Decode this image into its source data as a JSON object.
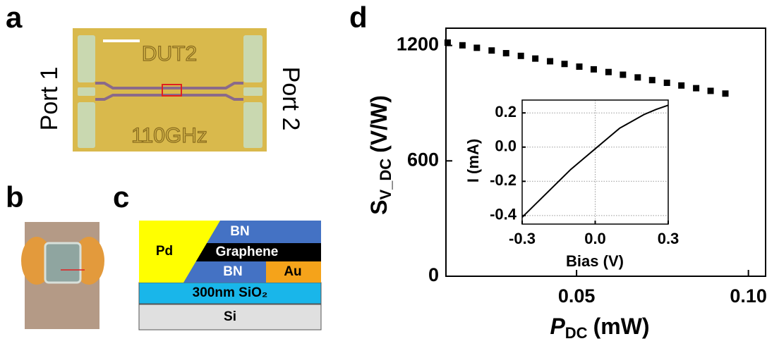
{
  "panels": {
    "a": {
      "label": "a",
      "port_left": "Port 1",
      "port_right": "Port 2",
      "chip_top": "DUT2",
      "chip_bottom": "110GHz"
    },
    "b": {
      "label": "b"
    },
    "c": {
      "label": "c",
      "layers": {
        "bn_top": "BN",
        "pd": "Pd",
        "graphene": "Graphene",
        "bn_bottom": "BN",
        "au": "Au",
        "oxide": "300nm SiO₂",
        "substrate": "Si"
      }
    },
    "d": {
      "label": "d"
    }
  },
  "chart_data": [
    {
      "type": "scatter",
      "xlabel": {
        "main": "P",
        "sub": "DC",
        "unit": "(mW)"
      },
      "ylabel": {
        "main": "S",
        "sub": "V_DC",
        "unit": "(V/W)"
      },
      "x": [
        0.0125,
        0.0168,
        0.021,
        0.0253,
        0.0295,
        0.0338,
        0.038,
        0.0423,
        0.0465,
        0.0508,
        0.055,
        0.0593,
        0.0635,
        0.0678,
        0.072,
        0.0763,
        0.0805,
        0.0848,
        0.089,
        0.0933
      ],
      "values": [
        1215,
        1201,
        1188,
        1174,
        1160,
        1146,
        1132,
        1118,
        1104,
        1090,
        1076,
        1062,
        1048,
        1034,
        1020,
        1006,
        992,
        978,
        964,
        950
      ],
      "color": "#000000",
      "xlim": [
        0.012,
        0.105
      ],
      "xticks": [
        0.05,
        {
          "value": 0.1,
          "label": "0.10"
        }
      ],
      "ylim": [
        0,
        1290
      ],
      "yticks": [
        0,
        600,
        1200
      ]
    },
    {
      "type": "line",
      "xlabel": "Bias (V)",
      "ylabel": "I (mA)",
      "x": [
        -0.3,
        -0.25,
        -0.2,
        -0.15,
        -0.1,
        -0.05,
        0,
        0.05,
        0.1,
        0.15,
        0.2,
        0.25,
        0.3
      ],
      "values": [
        -0.41,
        -0.34,
        -0.27,
        -0.2,
        -0.13,
        -0.07,
        -0.01,
        0.05,
        0.11,
        0.15,
        0.19,
        0.22,
        0.245
      ],
      "color": "#000000",
      "xlim": [
        -0.3,
        0.3
      ],
      "xticks": [
        -0.3,
        {
          "value": 0,
          "label": "0.0"
        },
        0.3
      ],
      "ylim": [
        -0.45,
        0.275
      ],
      "yticks": [
        0.2,
        {
          "value": 0,
          "label": "0.0"
        },
        -0.2,
        -0.4
      ],
      "grid": true
    }
  ]
}
